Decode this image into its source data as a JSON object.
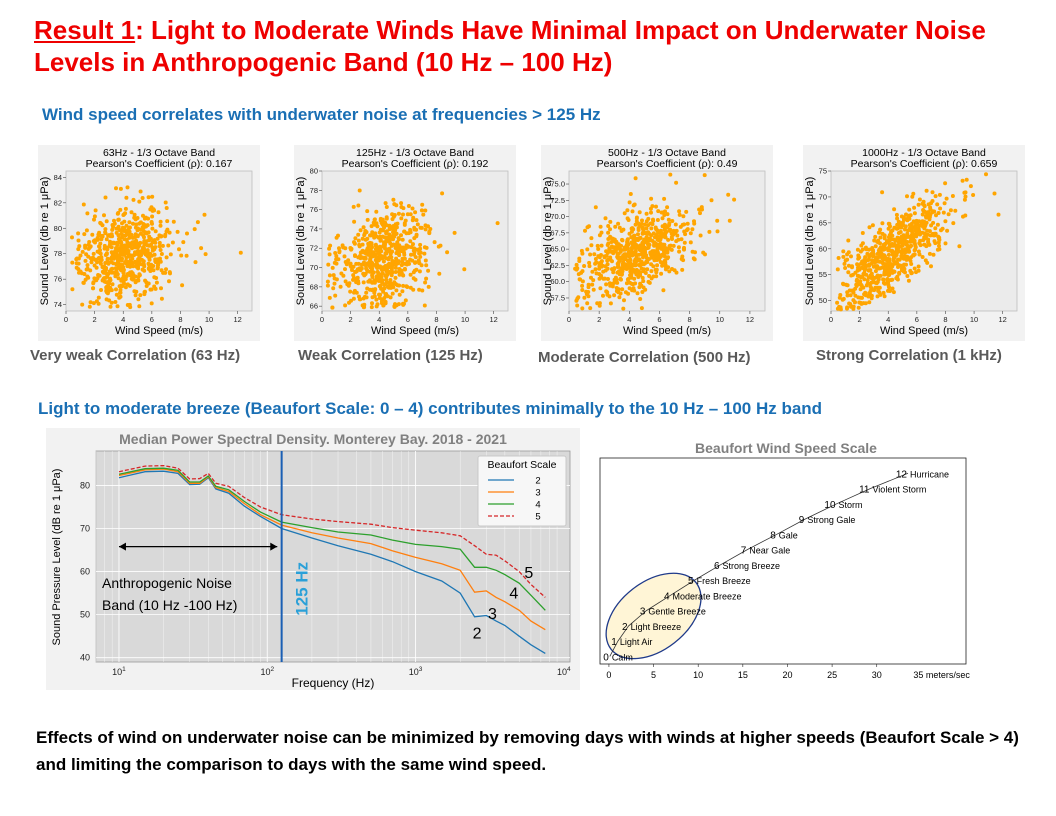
{
  "title": {
    "highlight": "Result 1",
    "rest": ": Light to Moderate Winds Have Minimal Impact on Underwater Noise Levels in Anthropogenic Band (10 Hz – 100 Hz)"
  },
  "subtitle1": "Wind speed correlates with underwater noise at frequencies > 125 Hz",
  "subtitle2": "Light to moderate breeze (Beaufort Scale: 0 – 4) contributes minimally to the 10 Hz – 100 Hz band",
  "bottom_text": "Effects of wind on underwater noise can be minimized by removing days with winds at higher speeds (Beaufort Scale > 4) and limiting the comparison to days with the same wind speed.",
  "colors": {
    "title": "#ee0000",
    "subtitle": "#1a6fb4",
    "scatter": "#ffa500",
    "series": [
      "#1f77b4",
      "#ff7f0e",
      "#2ca02c",
      "#d62728"
    ],
    "marker_line": "#1a5fb4",
    "ellipse_fill": "#fff5d6",
    "ellipse_stroke": "#1f3a8a"
  },
  "chart_data": [
    {
      "type": "scatter",
      "title": "63Hz - 1/3 Octave Band",
      "subtitle": "Pearson's Coefficient (ρ): 0.167",
      "xlabel": "Wind Speed (m/s)",
      "ylabel": "Sound Level (db re 1 μPa)",
      "xlim": [
        0,
        13
      ],
      "ylim": [
        73.5,
        84.5
      ],
      "xticks": [
        0,
        2,
        4,
        6,
        8,
        10,
        12
      ],
      "yticks": [
        74,
        76,
        78,
        80,
        82,
        84
      ],
      "caption": "Very weak Correlation (63 Hz)",
      "cloud": {
        "center": [
          4.2,
          77.8
        ],
        "spread": [
          1.6,
          1.8
        ],
        "slope": 0.25,
        "count": 620
      }
    },
    {
      "type": "scatter",
      "title": "125Hz - 1/3 Octave Band",
      "subtitle": "Pearson's Coefficient (ρ): 0.192",
      "xlabel": "Wind Speed (m/s)",
      "ylabel": "Sound Level (db re 1 μPa)",
      "xlim": [
        0,
        13
      ],
      "ylim": [
        65.5,
        80
      ],
      "xticks": [
        0,
        2,
        4,
        6,
        8,
        10,
        12
      ],
      "yticks": [
        66,
        68,
        70,
        72,
        74,
        76,
        78,
        80
      ],
      "caption": "Weak Correlation (125 Hz)",
      "cloud": {
        "center": [
          4.2,
          70.8
        ],
        "spread": [
          1.6,
          2.4
        ],
        "slope": 0.4,
        "count": 620
      }
    },
    {
      "type": "scatter",
      "title": "500Hz - 1/3 Octave Band",
      "subtitle": "Pearson's Coefficient (ρ): 0.49",
      "xlabel": "Wind Speed (m/s)",
      "ylabel": "Sound Level (db re 1 μPa)",
      "xlim": [
        0,
        13
      ],
      "ylim": [
        55.5,
        77
      ],
      "xticks": [
        0,
        2,
        4,
        6,
        8,
        10,
        12
      ],
      "yticks": [
        57.5,
        60.0,
        62.5,
        65.0,
        67.5,
        70.0,
        72.5,
        75.0
      ],
      "caption": "Moderate Correlation (500 Hz)",
      "cloud": {
        "center": [
          4.5,
          64.5
        ],
        "spread": [
          1.8,
          3.0
        ],
        "slope": 1.1,
        "count": 650
      }
    },
    {
      "type": "scatter",
      "title": "1000Hz - 1/3 Octave Band",
      "subtitle": "Pearson's Coefficient (ρ): 0.659",
      "xlabel": "Wind Speed (m/s)",
      "ylabel": "Sound Level (db re 1 μPa)",
      "xlim": [
        0,
        13
      ],
      "ylim": [
        48,
        75
      ],
      "xticks": [
        0,
        2,
        4,
        6,
        8,
        10,
        12
      ],
      "yticks": [
        50,
        55,
        60,
        65,
        70,
        75
      ],
      "caption": "Strong Correlation (1 kHz)",
      "cloud": {
        "center": [
          4.5,
          59.5
        ],
        "spread": [
          1.8,
          3.5
        ],
        "slope": 2.0,
        "count": 650
      }
    },
    {
      "type": "line",
      "title": "Median Power Spectral Density. Monterey Bay. 2018 - 2021",
      "xlabel": "Frequency (Hz)",
      "ylabel": "Sound Pressure Level (dB re 1 μPa)",
      "xscale": "log",
      "xlim": [
        7,
        11000
      ],
      "ylim": [
        39,
        88
      ],
      "xticks": [
        {
          "v": 10,
          "base": "10",
          "exp": "1"
        },
        {
          "v": 100,
          "base": "10",
          "exp": "2"
        },
        {
          "v": 1000,
          "base": "10",
          "exp": "3"
        },
        {
          "v": 10000,
          "base": "10",
          "exp": "4"
        }
      ],
      "yticks": [
        40,
        50,
        60,
        70,
        80
      ],
      "legend": {
        "title": "Beaufort Scale",
        "position": "top-right"
      },
      "series": [
        {
          "name": "2",
          "style": "solid",
          "points": [
            [
              10,
              81.8
            ],
            [
              15,
              83.2
            ],
            [
              20,
              83.3
            ],
            [
              25,
              82.8
            ],
            [
              30,
              80.2
            ],
            [
              35,
              80.3
            ],
            [
              40,
              81.8
            ],
            [
              45,
              79.2
            ],
            [
              55,
              78.2
            ],
            [
              70,
              75.2
            ],
            [
              90,
              72.8
            ],
            [
              125,
              70.0
            ],
            [
              200,
              67.8
            ],
            [
              300,
              66.0
            ],
            [
              500,
              64.0
            ],
            [
              700,
              62.3
            ],
            [
              1000,
              60.0
            ],
            [
              1500,
              57.8
            ],
            [
              2000,
              55.0
            ],
            [
              2500,
              49.5
            ],
            [
              3000,
              49.8
            ],
            [
              3500,
              48.5
            ],
            [
              4000,
              47.5
            ],
            [
              5000,
              45.0
            ],
            [
              6000,
              43.0
            ],
            [
              7500,
              41.0
            ]
          ]
        },
        {
          "name": "3",
          "style": "solid",
          "points": [
            [
              10,
              82.3
            ],
            [
              15,
              83.6
            ],
            [
              20,
              83.8
            ],
            [
              25,
              83.2
            ],
            [
              30,
              80.5
            ],
            [
              35,
              80.5
            ],
            [
              40,
              82.0
            ],
            [
              45,
              79.5
            ],
            [
              55,
              78.6
            ],
            [
              70,
              75.8
            ],
            [
              90,
              73.2
            ],
            [
              125,
              70.8
            ],
            [
              200,
              69.0
            ],
            [
              300,
              67.8
            ],
            [
              500,
              66.5
            ],
            [
              700,
              64.8
            ],
            [
              1000,
              63.3
            ],
            [
              1500,
              61.8
            ],
            [
              2000,
              60.3
            ],
            [
              2500,
              55.2
            ],
            [
              3000,
              55.5
            ],
            [
              3500,
              54.0
            ],
            [
              4000,
              53.0
            ],
            [
              5000,
              51.0
            ],
            [
              6000,
              48.5
            ],
            [
              7500,
              46.5
            ]
          ]
        },
        {
          "name": "4",
          "style": "solid",
          "points": [
            [
              10,
              82.6
            ],
            [
              15,
              83.9
            ],
            [
              20,
              84.0
            ],
            [
              25,
              83.5
            ],
            [
              30,
              80.8
            ],
            [
              35,
              80.8
            ],
            [
              40,
              82.2
            ],
            [
              45,
              79.8
            ],
            [
              55,
              79.0
            ],
            [
              70,
              76.3
            ],
            [
              90,
              73.8
            ],
            [
              125,
              71.5
            ],
            [
              200,
              70.2
            ],
            [
              300,
              69.2
            ],
            [
              500,
              68.5
            ],
            [
              700,
              67.3
            ],
            [
              1000,
              66.3
            ],
            [
              1500,
              65.8
            ],
            [
              2000,
              65.2
            ],
            [
              2500,
              61.0
            ],
            [
              3000,
              61.0
            ],
            [
              3500,
              60.3
            ],
            [
              4000,
              59.3
            ],
            [
              5000,
              57.3
            ],
            [
              6000,
              54.5
            ],
            [
              7500,
              51.0
            ]
          ]
        },
        {
          "name": "5",
          "style": "dashed",
          "points": [
            [
              10,
              83.2
            ],
            [
              15,
              84.5
            ],
            [
              20,
              84.6
            ],
            [
              25,
              84.0
            ],
            [
              30,
              81.5
            ],
            [
              35,
              81.6
            ],
            [
              40,
              82.8
            ],
            [
              45,
              80.5
            ],
            [
              55,
              79.8
            ],
            [
              70,
              77.2
            ],
            [
              90,
              75.0
            ],
            [
              125,
              73.2
            ],
            [
              200,
              72.2
            ],
            [
              300,
              71.6
            ],
            [
              500,
              71.0
            ],
            [
              700,
              70.2
            ],
            [
              1000,
              69.6
            ],
            [
              1500,
              69.0
            ],
            [
              2000,
              68.3
            ],
            [
              2500,
              66.0
            ],
            [
              3000,
              64.0
            ],
            [
              3500,
              63.8
            ],
            [
              4000,
              62.5
            ],
            [
              5000,
              60.0
            ],
            [
              6000,
              57.0
            ],
            [
              7500,
              54.0
            ]
          ]
        }
      ],
      "vline": {
        "x": 125,
        "label": "125 Hz"
      },
      "band_annotation": {
        "from": 10,
        "to": 100,
        "y": 65.8,
        "line1": "Anthropogenic Noise",
        "line2": "Band (10 Hz -100 Hz)"
      },
      "end_labels": [
        {
          "text": "5",
          "x": 5800,
          "y": 58.5
        },
        {
          "text": "4",
          "x": 4600,
          "y": 53.8
        },
        {
          "text": "3",
          "x": 3300,
          "y": 49.0
        },
        {
          "text": "2",
          "x": 2600,
          "y": 44.5
        }
      ]
    },
    {
      "type": "scatter",
      "title": "Beaufort Wind Speed Scale",
      "xlim": [
        -1,
        40
      ],
      "ylim": [
        -0.5,
        13
      ],
      "xticks": [
        0,
        5,
        10,
        15,
        20,
        25,
        30
      ],
      "xtick_end_label": "35 meters/sec",
      "points": [
        {
          "n": "0",
          "label": "Calm",
          "x": 0.1
        },
        {
          "n": "1",
          "label": "Light Air",
          "x": 1.0
        },
        {
          "n": "2",
          "label": "Light Breeze",
          "x": 2.2
        },
        {
          "n": "3",
          "label": "Gentle Breeze",
          "x": 4.2
        },
        {
          "n": "4",
          "label": "Moderate Breeze",
          "x": 6.9
        },
        {
          "n": "5",
          "label": "Fresh Breeze",
          "x": 9.6
        },
        {
          "n": "6",
          "label": "Strong Breeze",
          "x": 12.5
        },
        {
          "n": "7",
          "label": "Near Gale",
          "x": 15.5
        },
        {
          "n": "8",
          "label": "Gale",
          "x": 18.8
        },
        {
          "n": "9",
          "label": "Strong Gale",
          "x": 22.0
        },
        {
          "n": "10",
          "label": "Storm",
          "x": 25.5
        },
        {
          "n": "11",
          "label": "Violent Storm",
          "x": 29.3
        },
        {
          "n": "12",
          "label": "Hurricane",
          "x": 33.5
        }
      ]
    }
  ]
}
